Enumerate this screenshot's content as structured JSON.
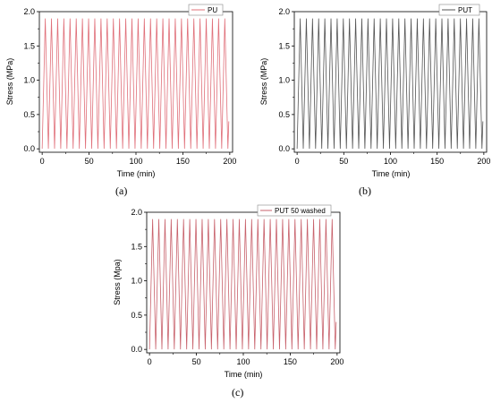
{
  "chart_data": [
    {
      "panel": "(a)",
      "type": "line",
      "xlabel": "Time (min)",
      "ylabel": "Stress (MPa)",
      "xlim": [
        -3,
        203
      ],
      "ylim": [
        -0.05,
        2.0
      ],
      "xticks": [
        0,
        50,
        100,
        150,
        200
      ],
      "yticks": [
        0.0,
        0.5,
        1.0,
        1.5,
        2.0
      ],
      "xtick_labels": [
        "0",
        "50",
        "100",
        "150",
        "200"
      ],
      "ytick_labels": [
        "0.0",
        "0.5",
        "1.0",
        "1.5",
        "2.0"
      ],
      "grid": false,
      "legend_position": "top-right",
      "series": [
        {
          "name": "PU",
          "color": "#e0707a",
          "cycles": 30,
          "cycle_period_min": 6.6,
          "peak_stress": 1.9,
          "min_stress": 0.0,
          "x_start": 0,
          "x_end": 199,
          "final_stress": 0.4
        }
      ]
    },
    {
      "panel": "(b)",
      "type": "line",
      "xlabel": "Time (min)",
      "ylabel": "Stress (MPa)",
      "xlim": [
        -3,
        203
      ],
      "ylim": [
        -0.05,
        2.0
      ],
      "xticks": [
        0,
        50,
        100,
        150,
        200
      ],
      "yticks": [
        0.0,
        0.5,
        1.0,
        1.5,
        2.0
      ],
      "xtick_labels": [
        "0",
        "50",
        "100",
        "150",
        "200"
      ],
      "ytick_labels": [
        "0.0",
        "0.5",
        "1.0",
        "1.5",
        "2.0"
      ],
      "grid": false,
      "legend_position": "top-right",
      "series": [
        {
          "name": "PUT",
          "color": "#555555",
          "cycles": 30,
          "cycle_period_min": 6.6,
          "peak_stress": 1.9,
          "min_stress": 0.0,
          "x_start": 0,
          "x_end": 199,
          "final_stress": 0.4
        }
      ]
    },
    {
      "panel": "(c)",
      "type": "line",
      "xlabel": "Time (min)",
      "ylabel": "Stress (Mpa)",
      "xlim": [
        -3,
        203
      ],
      "ylim": [
        -0.05,
        2.0
      ],
      "xticks": [
        0,
        50,
        100,
        150,
        200
      ],
      "yticks": [
        0.0,
        0.5,
        1.0,
        1.5,
        2.0
      ],
      "xtick_labels": [
        "0",
        "50",
        "100",
        "150",
        "200"
      ],
      "ytick_labels": [
        "0.0",
        "0.5",
        "1.0",
        "1.5",
        "2.0"
      ],
      "grid": false,
      "legend_position": "top-right",
      "series": [
        {
          "name": "PUT 50 washed",
          "color": "#c8626c",
          "cycles": 30,
          "cycle_period_min": 6.6,
          "peak_stress": 1.9,
          "min_stress": 0.0,
          "x_start": 0,
          "x_end": 199,
          "final_stress": 0.4
        }
      ]
    }
  ]
}
